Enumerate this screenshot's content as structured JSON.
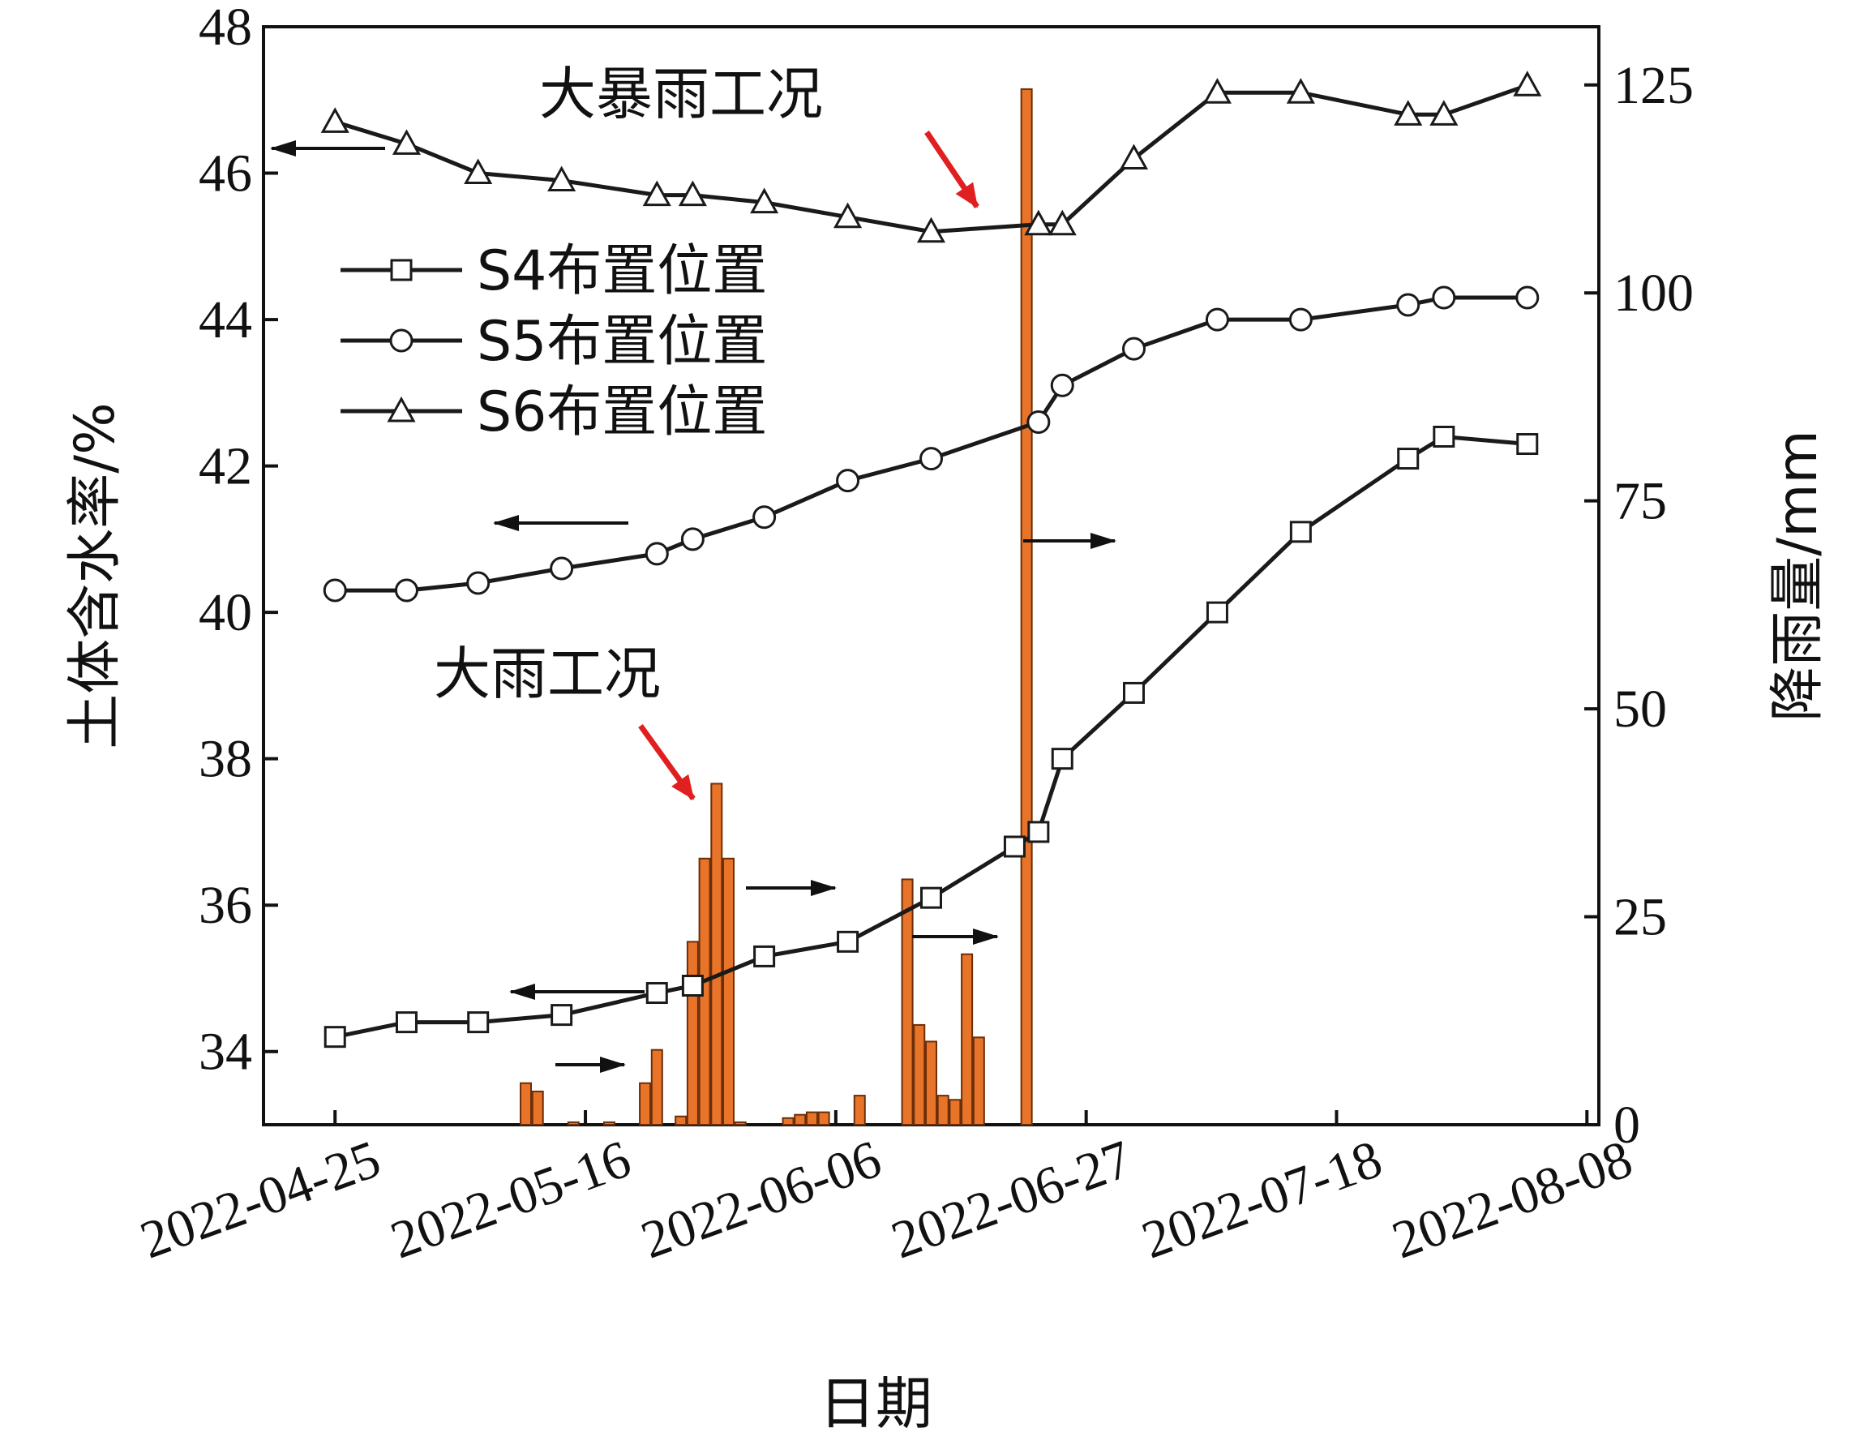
{
  "chart_data": {
    "type": "line",
    "xlabel": "日期",
    "ylabel_left": "土体含水率/%",
    "ylabel_right": "降雨量/mm",
    "x_ticks": [
      "2022-04-25",
      "2022-05-16",
      "2022-06-06",
      "2022-06-27",
      "2022-07-18",
      "2022-08-08"
    ],
    "x_range": [
      "2022-04-19",
      "2022-08-09"
    ],
    "y_left": {
      "min": 33,
      "max": 48,
      "ticks": [
        34,
        36,
        38,
        40,
        42,
        44,
        46,
        48
      ]
    },
    "y_right": {
      "min": 0,
      "max": 132,
      "ticks": [
        0,
        25,
        50,
        75,
        100,
        125
      ]
    },
    "grid": false,
    "legend_position": "top-left",
    "series": [
      {
        "name": "S4布置位置",
        "marker": "square",
        "axis": "left",
        "points": [
          [
            "2022-04-25",
            34.2
          ],
          [
            "2022-05-01",
            34.4
          ],
          [
            "2022-05-07",
            34.4
          ],
          [
            "2022-05-14",
            34.5
          ],
          [
            "2022-05-22",
            34.8
          ],
          [
            "2022-05-25",
            34.9
          ],
          [
            "2022-05-31",
            35.3
          ],
          [
            "2022-06-07",
            35.5
          ],
          [
            "2022-06-14",
            36.1
          ],
          [
            "2022-06-21",
            36.8
          ],
          [
            "2022-06-23",
            37.0
          ],
          [
            "2022-06-25",
            38.0
          ],
          [
            "2022-07-01",
            38.9
          ],
          [
            "2022-07-08",
            40.0
          ],
          [
            "2022-07-15",
            41.1
          ],
          [
            "2022-07-24",
            42.1
          ],
          [
            "2022-07-27",
            42.4
          ],
          [
            "2022-08-03",
            42.3
          ]
        ]
      },
      {
        "name": "S5布置位置",
        "marker": "circle",
        "axis": "left",
        "points": [
          [
            "2022-04-25",
            40.3
          ],
          [
            "2022-05-01",
            40.3
          ],
          [
            "2022-05-07",
            40.4
          ],
          [
            "2022-05-14",
            40.6
          ],
          [
            "2022-05-22",
            40.8
          ],
          [
            "2022-05-25",
            41.0
          ],
          [
            "2022-05-31",
            41.3
          ],
          [
            "2022-06-07",
            41.8
          ],
          [
            "2022-06-14",
            42.1
          ],
          [
            "2022-06-23",
            42.6
          ],
          [
            "2022-06-25",
            43.1
          ],
          [
            "2022-07-01",
            43.6
          ],
          [
            "2022-07-08",
            44.0
          ],
          [
            "2022-07-15",
            44.0
          ],
          [
            "2022-07-24",
            44.2
          ],
          [
            "2022-07-27",
            44.3
          ],
          [
            "2022-08-03",
            44.3
          ]
        ]
      },
      {
        "name": "S6布置位置",
        "marker": "triangle",
        "axis": "left",
        "points": [
          [
            "2022-04-25",
            46.7
          ],
          [
            "2022-05-01",
            46.4
          ],
          [
            "2022-05-07",
            46.0
          ],
          [
            "2022-05-14",
            45.9
          ],
          [
            "2022-05-22",
            45.7
          ],
          [
            "2022-05-25",
            45.7
          ],
          [
            "2022-05-31",
            45.6
          ],
          [
            "2022-06-07",
            45.4
          ],
          [
            "2022-06-14",
            45.2
          ],
          [
            "2022-06-23",
            45.3
          ],
          [
            "2022-06-25",
            45.3
          ],
          [
            "2022-07-01",
            46.2
          ],
          [
            "2022-07-08",
            47.1
          ],
          [
            "2022-07-15",
            47.1
          ],
          [
            "2022-07-24",
            46.8
          ],
          [
            "2022-07-27",
            46.8
          ],
          [
            "2022-08-03",
            47.2
          ]
        ]
      }
    ],
    "rainfall": {
      "axis": "right",
      "color": "#e8742a",
      "bars": [
        [
          "2022-05-11",
          5
        ],
        [
          "2022-05-12",
          4
        ],
        [
          "2022-05-15",
          0.3
        ],
        [
          "2022-05-18",
          0.3
        ],
        [
          "2022-05-21",
          5
        ],
        [
          "2022-05-22",
          9
        ],
        [
          "2022-05-24",
          1
        ],
        [
          "2022-05-25",
          22
        ],
        [
          "2022-05-26",
          32
        ],
        [
          "2022-05-27",
          41
        ],
        [
          "2022-05-28",
          32
        ],
        [
          "2022-05-29",
          0.3
        ],
        [
          "2022-06-02",
          0.8
        ],
        [
          "2022-06-03",
          1.2
        ],
        [
          "2022-06-04",
          1.5
        ],
        [
          "2022-06-05",
          1.5
        ],
        [
          "2022-06-08",
          3.5
        ],
        [
          "2022-06-12",
          29.5
        ],
        [
          "2022-06-13",
          12
        ],
        [
          "2022-06-14",
          10
        ],
        [
          "2022-06-15",
          3.5
        ],
        [
          "2022-06-16",
          3
        ],
        [
          "2022-06-17",
          20.5
        ],
        [
          "2022-06-18",
          10.5
        ],
        [
          "2022-06-22",
          124.5
        ]
      ]
    },
    "annotations": [
      {
        "text": "大暴雨工况",
        "target": [
          "2022-06-22",
          124.5
        ]
      },
      {
        "text": "大雨工况",
        "target": [
          "2022-05-27",
          41
        ]
      }
    ]
  }
}
